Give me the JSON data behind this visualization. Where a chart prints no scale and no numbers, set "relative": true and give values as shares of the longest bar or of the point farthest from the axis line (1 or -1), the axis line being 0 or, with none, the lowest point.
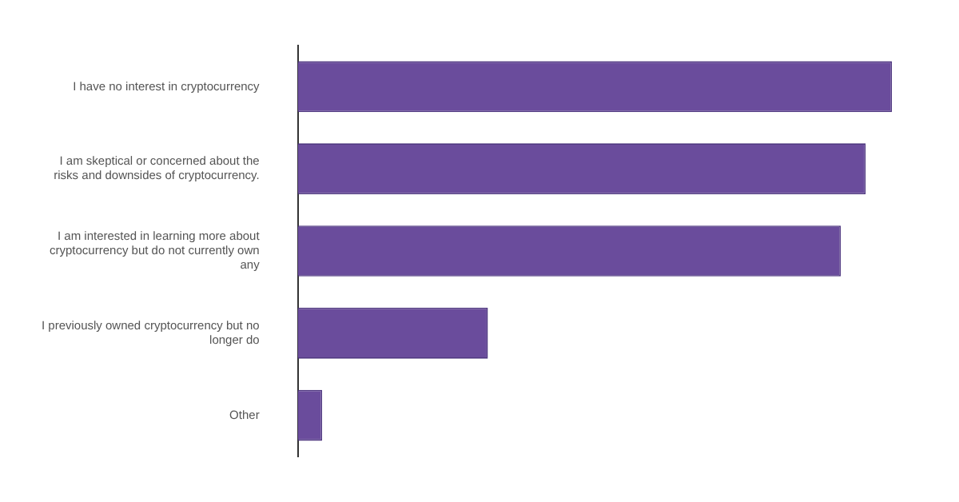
{
  "chart_data": {
    "type": "bar",
    "orientation": "horizontal",
    "relative": true,
    "color": "#6a4c9c",
    "grid": false,
    "legend": false,
    "categories": [
      "I have no interest in cryptocurrency",
      "I am skeptical or concerned about the risks and downsides of cryptocurrency.",
      "I am interested in learning more about cryptocurrency but do not currently own any",
      "I previously owned cryptocurrency but no longer do",
      "Other"
    ],
    "values": [
      1,
      0.956,
      0.914,
      0.32,
      0.041
    ]
  }
}
